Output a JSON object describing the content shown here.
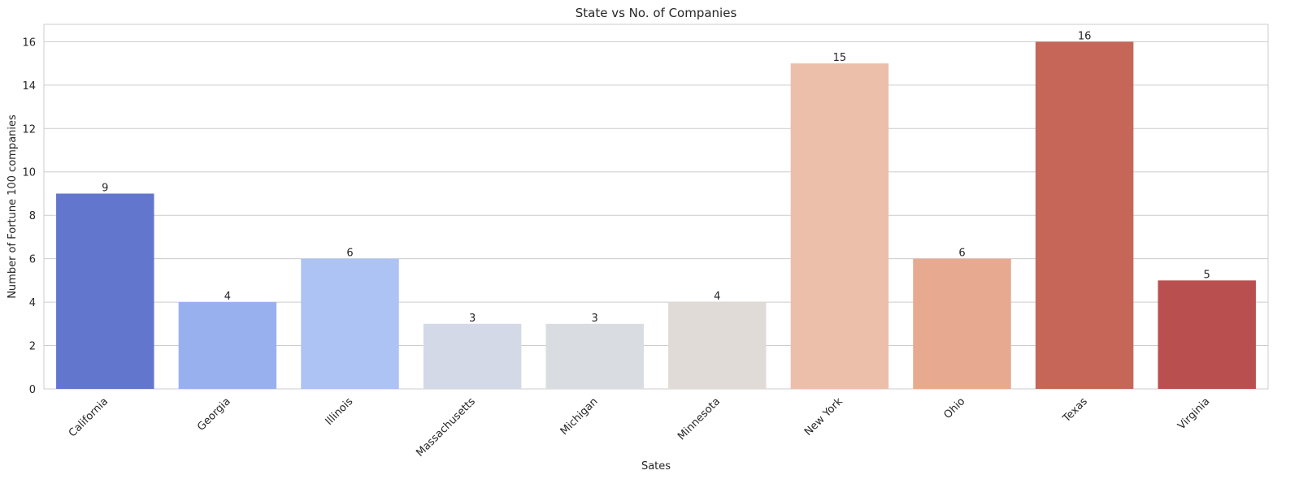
{
  "chart_data": {
    "type": "bar",
    "title": "State vs No. of Companies",
    "xlabel": "Sates",
    "ylabel": "Number of Fortune 100 companies",
    "categories": [
      "California",
      "Georgia",
      "Illinois",
      "Massachusetts",
      "Michigan",
      "Minnesota",
      "New York",
      "Ohio",
      "Texas",
      "Virginia"
    ],
    "values": [
      9,
      4,
      6,
      3,
      3,
      4,
      15,
      6,
      16,
      5
    ],
    "colors": [
      "#6176cc",
      "#98b1ee",
      "#adc3f4",
      "#d3d9e7",
      "#d9dce1",
      "#e1dbd8",
      "#ecbfab",
      "#e8a991",
      "#c56659",
      "#b9504f"
    ],
    "ylim": [
      0,
      16.8
    ],
    "yticks": [
      0,
      2,
      4,
      6,
      8,
      10,
      12,
      14,
      16
    ],
    "grid": true,
    "bar_labels": true
  }
}
